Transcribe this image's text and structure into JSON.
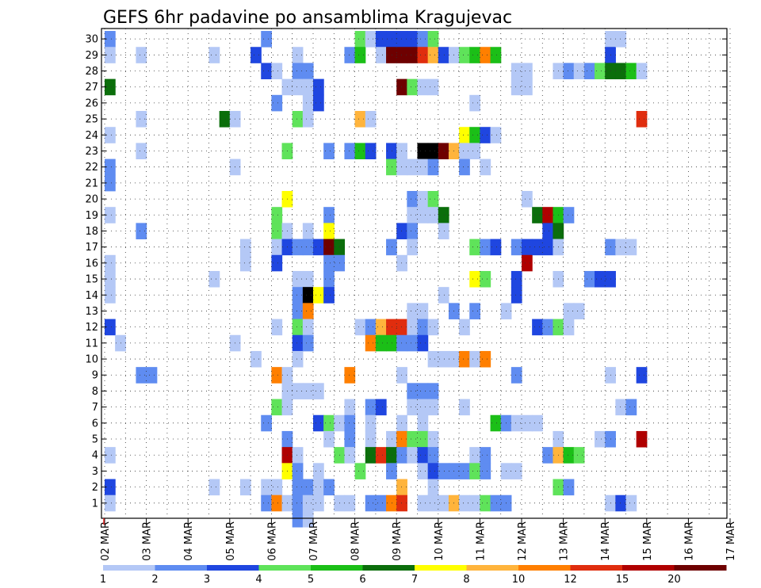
{
  "chart_data": {
    "type": "heatmap",
    "title": "GEFS 6hr padavine po ansamblima Kragujevac",
    "xlabel": "",
    "ylabel": "",
    "y_range": [
      1,
      30
    ],
    "y_ticks": [
      "1",
      "2",
      "3",
      "4",
      "5",
      "6",
      "7",
      "8",
      "9",
      "10",
      "11",
      "12",
      "13",
      "14",
      "15",
      "16",
      "17",
      "18",
      "19",
      "20",
      "21",
      "22",
      "23",
      "24",
      "25",
      "26",
      "27",
      "28",
      "29",
      "30"
    ],
    "x_ticks": [
      "02 MAR",
      "03 MAR",
      "04 MAR",
      "05 MAR",
      "06 MAR",
      "07 MAR",
      "08 MAR",
      "09 MAR",
      "10 MAR",
      "11 MAR",
      "12 MAR",
      "13 MAR",
      "14 MAR",
      "15 MAR",
      "16 MAR",
      "17 MAR"
    ],
    "time_step_hours": 6,
    "grid": true,
    "colorbar": {
      "placement": "bottom",
      "labels": [
        "1",
        "2",
        "3",
        "4",
        "5",
        "6",
        "7",
        "8",
        "10",
        "12",
        "15",
        "20"
      ],
      "colors": [
        "#b4c8f6",
        "#5f8cf1",
        "#1f46e0",
        "#5fe35a",
        "#1bbf17",
        "#0b6e0b",
        "#ffff00",
        "#ffb43c",
        "#ff7f00",
        "#e02d0e",
        "#b00000",
        "#6e0000"
      ]
    },
    "cells": [
      [
        0,
        30,
        2
      ],
      [
        0,
        29,
        1
      ],
      [
        0,
        24,
        1
      ],
      [
        0,
        22,
        2
      ],
      [
        0,
        21,
        2
      ],
      [
        0,
        19,
        1
      ],
      [
        0,
        16,
        1
      ],
      [
        0,
        15,
        1
      ],
      [
        0,
        14,
        1
      ],
      [
        0,
        12,
        3
      ],
      [
        0,
        4,
        1
      ],
      [
        0,
        2,
        3
      ],
      [
        0,
        1,
        1
      ],
      [
        0,
        27,
        6
      ],
      [
        1,
        11,
        1
      ],
      [
        3,
        29,
        1
      ],
      [
        3,
        25,
        1
      ],
      [
        3,
        23,
        1
      ],
      [
        3,
        18,
        2
      ],
      [
        3,
        9,
        2
      ],
      [
        4,
        9,
        2
      ],
      [
        10,
        29,
        1
      ],
      [
        10,
        15,
        1
      ],
      [
        10,
        2,
        1
      ],
      [
        11,
        25,
        6
      ],
      [
        12,
        25,
        1
      ],
      [
        12,
        22,
        1
      ],
      [
        12,
        11,
        1
      ],
      [
        13,
        17,
        1
      ],
      [
        13,
        16,
        1
      ],
      [
        13,
        2,
        1
      ],
      [
        14,
        29,
        3
      ],
      [
        14,
        10,
        1
      ],
      [
        15,
        30,
        2
      ],
      [
        15,
        28,
        3
      ],
      [
        15,
        6,
        2
      ],
      [
        15,
        2,
        1
      ],
      [
        15,
        1,
        2
      ],
      [
        16,
        28,
        1
      ],
      [
        16,
        26,
        2
      ],
      [
        16,
        19,
        4
      ],
      [
        16,
        18,
        4
      ],
      [
        16,
        17,
        1
      ],
      [
        16,
        16,
        3
      ],
      [
        16,
        12,
        1
      ],
      [
        16,
        9,
        9
      ],
      [
        16,
        7,
        4
      ],
      [
        16,
        2,
        1
      ],
      [
        16,
        1,
        9
      ],
      [
        17,
        27,
        1
      ],
      [
        17,
        23,
        4
      ],
      [
        17,
        20,
        7
      ],
      [
        17,
        18,
        1
      ],
      [
        17,
        17,
        3
      ],
      [
        17,
        9,
        1
      ],
      [
        17,
        8,
        1
      ],
      [
        17,
        7,
        1
      ],
      [
        17,
        5,
        2
      ],
      [
        17,
        4,
        11
      ],
      [
        17,
        3,
        7
      ],
      [
        17,
        1,
        1
      ],
      [
        18,
        29,
        1
      ],
      [
        18,
        28,
        2
      ],
      [
        18,
        27,
        1
      ],
      [
        18,
        25,
        4
      ],
      [
        18,
        17,
        2
      ],
      [
        18,
        15,
        1
      ],
      [
        18,
        14,
        2
      ],
      [
        18,
        13,
        2
      ],
      [
        18,
        12,
        4
      ],
      [
        18,
        11,
        3
      ],
      [
        18,
        10,
        1
      ],
      [
        18,
        8,
        1
      ],
      [
        18,
        4,
        1
      ],
      [
        18,
        3,
        2
      ],
      [
        18,
        2,
        2
      ],
      [
        18,
        1,
        2
      ],
      [
        19,
        28,
        2
      ],
      [
        19,
        27,
        1
      ],
      [
        19,
        26,
        1
      ],
      [
        19,
        25,
        1
      ],
      [
        19,
        18,
        1
      ],
      [
        19,
        17,
        2
      ],
      [
        19,
        15,
        1
      ],
      [
        19,
        14,
        13
      ],
      [
        19,
        13,
        9
      ],
      [
        19,
        12,
        1
      ],
      [
        19,
        11,
        2
      ],
      [
        19,
        8,
        1
      ],
      [
        19,
        2,
        2
      ],
      [
        19,
        1,
        1
      ],
      [
        20,
        27,
        3
      ],
      [
        20,
        26,
        3
      ],
      [
        20,
        17,
        3
      ],
      [
        20,
        14,
        7
      ],
      [
        20,
        8,
        1
      ],
      [
        20,
        6,
        3
      ],
      [
        20,
        3,
        1
      ],
      [
        20,
        2,
        1
      ],
      [
        20,
        1,
        1
      ],
      [
        21,
        23,
        2
      ],
      [
        21,
        19,
        2
      ],
      [
        21,
        18,
        7
      ],
      [
        21,
        17,
        12
      ],
      [
        21,
        16,
        2
      ],
      [
        21,
        15,
        2
      ],
      [
        21,
        14,
        3
      ],
      [
        21,
        6,
        4
      ],
      [
        21,
        5,
        1
      ],
      [
        21,
        2,
        2
      ],
      [
        22,
        17,
        6
      ],
      [
        22,
        16,
        2
      ],
      [
        22,
        6,
        1
      ],
      [
        22,
        4,
        4
      ],
      [
        22,
        1,
        1
      ],
      [
        23,
        29,
        2
      ],
      [
        23,
        23,
        2
      ],
      [
        23,
        9,
        9
      ],
      [
        23,
        7,
        1
      ],
      [
        23,
        6,
        2
      ],
      [
        23,
        5,
        2
      ],
      [
        23,
        4,
        1
      ],
      [
        23,
        1,
        1
      ],
      [
        24,
        30,
        4
      ],
      [
        24,
        29,
        5
      ],
      [
        24,
        25,
        8
      ],
      [
        24,
        23,
        5
      ],
      [
        24,
        12,
        1
      ],
      [
        24,
        3,
        4
      ],
      [
        25,
        30,
        1
      ],
      [
        25,
        25,
        1
      ],
      [
        25,
        23,
        3
      ],
      [
        25,
        12,
        2
      ],
      [
        25,
        11,
        9
      ],
      [
        25,
        7,
        2
      ],
      [
        25,
        6,
        1
      ],
      [
        25,
        5,
        1
      ],
      [
        25,
        4,
        6
      ],
      [
        25,
        1,
        2
      ],
      [
        26,
        30,
        3
      ],
      [
        26,
        29,
        1
      ],
      [
        26,
        12,
        8
      ],
      [
        26,
        11,
        5
      ],
      [
        26,
        7,
        3
      ],
      [
        26,
        4,
        10
      ],
      [
        26,
        1,
        2
      ],
      [
        27,
        30,
        3
      ],
      [
        27,
        29,
        12
      ],
      [
        27,
        23,
        3
      ],
      [
        27,
        22,
        4
      ],
      [
        27,
        17,
        2
      ],
      [
        27,
        12,
        10
      ],
      [
        27,
        11,
        5
      ],
      [
        27,
        5,
        1
      ],
      [
        27,
        4,
        6
      ],
      [
        27,
        3,
        2
      ],
      [
        27,
        1,
        9
      ],
      [
        28,
        30,
        3
      ],
      [
        28,
        29,
        12
      ],
      [
        28,
        27,
        12
      ],
      [
        28,
        23,
        1
      ],
      [
        28,
        22,
        1
      ],
      [
        28,
        18,
        3
      ],
      [
        28,
        16,
        1
      ],
      [
        28,
        12,
        10
      ],
      [
        28,
        11,
        2
      ],
      [
        28,
        9,
        1
      ],
      [
        28,
        6,
        1
      ],
      [
        28,
        5,
        9
      ],
      [
        28,
        4,
        2
      ],
      [
        28,
        2,
        8
      ],
      [
        28,
        1,
        10
      ],
      [
        29,
        30,
        3
      ],
      [
        29,
        29,
        12
      ],
      [
        29,
        27,
        4
      ],
      [
        29,
        22,
        1
      ],
      [
        29,
        20,
        2
      ],
      [
        29,
        19,
        1
      ],
      [
        29,
        18,
        2
      ],
      [
        29,
        17,
        1
      ],
      [
        29,
        13,
        1
      ],
      [
        29,
        12,
        1
      ],
      [
        29,
        11,
        2
      ],
      [
        29,
        8,
        2
      ],
      [
        29,
        7,
        1
      ],
      [
        29,
        5,
        4
      ],
      [
        29,
        4,
        1
      ],
      [
        30,
        30,
        2
      ],
      [
        30,
        29,
        10
      ],
      [
        30,
        27,
        1
      ],
      [
        30,
        23,
        13
      ],
      [
        30,
        22,
        1
      ],
      [
        30,
        20,
        1
      ],
      [
        30,
        19,
        1
      ],
      [
        30,
        13,
        1
      ],
      [
        30,
        12,
        2
      ],
      [
        30,
        11,
        3
      ],
      [
        30,
        8,
        2
      ],
      [
        30,
        7,
        1
      ],
      [
        30,
        6,
        1
      ],
      [
        30,
        5,
        4
      ],
      [
        30,
        4,
        3
      ],
      [
        30,
        3,
        1
      ],
      [
        30,
        1,
        1
      ],
      [
        31,
        30,
        4
      ],
      [
        31,
        29,
        8
      ],
      [
        31,
        27,
        1
      ],
      [
        31,
        23,
        13
      ],
      [
        31,
        22,
        2
      ],
      [
        31,
        20,
        4
      ],
      [
        31,
        19,
        1
      ],
      [
        31,
        12,
        1
      ],
      [
        31,
        10,
        1
      ],
      [
        31,
        8,
        2
      ],
      [
        31,
        7,
        1
      ],
      [
        31,
        5,
        1
      ],
      [
        31,
        4,
        2
      ],
      [
        31,
        3,
        3
      ],
      [
        31,
        2,
        1
      ],
      [
        31,
        1,
        1
      ],
      [
        32,
        29,
        3
      ],
      [
        32,
        23,
        12
      ],
      [
        32,
        19,
        6
      ],
      [
        32,
        18,
        1
      ],
      [
        32,
        14,
        1
      ],
      [
        32,
        10,
        1
      ],
      [
        32,
        3,
        2
      ],
      [
        32,
        1,
        1
      ],
      [
        33,
        29,
        1
      ],
      [
        33,
        23,
        8
      ],
      [
        33,
        13,
        2
      ],
      [
        33,
        10,
        1
      ],
      [
        33,
        3,
        2
      ],
      [
        33,
        1,
        8
      ],
      [
        34,
        29,
        4
      ],
      [
        34,
        24,
        7
      ],
      [
        34,
        23,
        1
      ],
      [
        34,
        22,
        2
      ],
      [
        34,
        12,
        1
      ],
      [
        34,
        10,
        9
      ],
      [
        34,
        7,
        1
      ],
      [
        34,
        3,
        2
      ],
      [
        34,
        1,
        1
      ],
      [
        35,
        29,
        5
      ],
      [
        35,
        26,
        1
      ],
      [
        35,
        24,
        5
      ],
      [
        35,
        23,
        1
      ],
      [
        35,
        17,
        4
      ],
      [
        35,
        15,
        7
      ],
      [
        35,
        13,
        2
      ],
      [
        35,
        10,
        1
      ],
      [
        35,
        4,
        1
      ],
      [
        35,
        3,
        4
      ],
      [
        35,
        1,
        1
      ],
      [
        36,
        29,
        9
      ],
      [
        36,
        24,
        3
      ],
      [
        36,
        22,
        1
      ],
      [
        36,
        17,
        2
      ],
      [
        36,
        15,
        4
      ],
      [
        36,
        10,
        9
      ],
      [
        36,
        4,
        2
      ],
      [
        36,
        3,
        2
      ],
      [
        36,
        1,
        4
      ],
      [
        37,
        29,
        5
      ],
      [
        37,
        24,
        1
      ],
      [
        37,
        17,
        3
      ],
      [
        37,
        6,
        5
      ],
      [
        37,
        1,
        2
      ],
      [
        38,
        13,
        1
      ],
      [
        38,
        6,
        2
      ],
      [
        38,
        3,
        1
      ],
      [
        38,
        1,
        2
      ],
      [
        39,
        28,
        1
      ],
      [
        39,
        27,
        1
      ],
      [
        39,
        17,
        2
      ],
      [
        39,
        15,
        3
      ],
      [
        39,
        14,
        3
      ],
      [
        39,
        9,
        2
      ],
      [
        39,
        6,
        1
      ],
      [
        39,
        3,
        1
      ],
      [
        40,
        28,
        1
      ],
      [
        40,
        27,
        1
      ],
      [
        40,
        20,
        1
      ],
      [
        40,
        17,
        3
      ],
      [
        40,
        16,
        11
      ],
      [
        40,
        6,
        1
      ],
      [
        41,
        19,
        6
      ],
      [
        41,
        17,
        3
      ],
      [
        41,
        12,
        3
      ],
      [
        41,
        6,
        1
      ],
      [
        42,
        19,
        11
      ],
      [
        42,
        18,
        3
      ],
      [
        42,
        17,
        3
      ],
      [
        42,
        12,
        2
      ],
      [
        42,
        4,
        2
      ],
      [
        43,
        28,
        1
      ],
      [
        43,
        19,
        5
      ],
      [
        43,
        18,
        6
      ],
      [
        43,
        17,
        1
      ],
      [
        43,
        15,
        1
      ],
      [
        43,
        12,
        4
      ],
      [
        43,
        5,
        1
      ],
      [
        43,
        4,
        8
      ],
      [
        43,
        2,
        4
      ],
      [
        44,
        28,
        2
      ],
      [
        44,
        19,
        2
      ],
      [
        44,
        13,
        1
      ],
      [
        44,
        12,
        1
      ],
      [
        44,
        4,
        5
      ],
      [
        44,
        2,
        2
      ],
      [
        45,
        28,
        1
      ],
      [
        45,
        13,
        1
      ],
      [
        45,
        4,
        4
      ],
      [
        46,
        28,
        2
      ],
      [
        46,
        15,
        2
      ],
      [
        47,
        28,
        4
      ],
      [
        47,
        15,
        3
      ],
      [
        47,
        5,
        1
      ],
      [
        48,
        30,
        1
      ],
      [
        48,
        29,
        3
      ],
      [
        48,
        28,
        6
      ],
      [
        48,
        17,
        2
      ],
      [
        48,
        15,
        3
      ],
      [
        48,
        9,
        1
      ],
      [
        48,
        5,
        2
      ],
      [
        48,
        1,
        1
      ],
      [
        49,
        30,
        1
      ],
      [
        49,
        28,
        6
      ],
      [
        49,
        17,
        1
      ],
      [
        49,
        7,
        1
      ],
      [
        49,
        1,
        3
      ],
      [
        50,
        28,
        5
      ],
      [
        50,
        17,
        1
      ],
      [
        50,
        7,
        2
      ],
      [
        50,
        1,
        1
      ],
      [
        51,
        28,
        1
      ],
      [
        51,
        25,
        10
      ],
      [
        51,
        9,
        3
      ],
      [
        51,
        5,
        11
      ]
    ],
    "extra_cells_below_axis": [
      [
        18,
        0,
        2
      ],
      [
        19,
        0,
        1
      ]
    ]
  }
}
